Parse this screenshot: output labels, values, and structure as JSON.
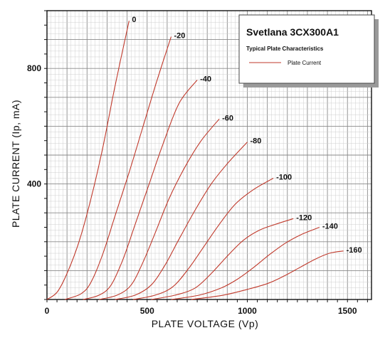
{
  "chart_data": {
    "type": "line",
    "title": "Svetlana 3CX300A1",
    "subtitle": "Typical Plate Characteristics",
    "xlabel": "PLATE VOLTAGE (Vp)",
    "ylabel": "PLATE CURRENT (Ip, mA)",
    "xlim": [
      0,
      1620
    ],
    "ylim": [
      0,
      1000
    ],
    "x_ticks": [
      "0",
      "500",
      "1000",
      "1500"
    ],
    "y_ticks": [
      "400",
      "800"
    ],
    "x_tick_values": [
      0,
      500,
      1000,
      1500
    ],
    "y_tick_values": [
      400,
      800
    ],
    "grid": true,
    "legend_position": "top-right",
    "legend": [
      {
        "name": "Plate Current",
        "color": "#c0392b"
      }
    ],
    "line_color": "#c0392b",
    "series": [
      {
        "name": "0",
        "label": "0",
        "points": [
          [
            0,
            0
          ],
          [
            50,
            25
          ],
          [
            100,
            90
          ],
          [
            160,
            200
          ],
          [
            220,
            350
          ],
          [
            280,
            530
          ],
          [
            340,
            740
          ],
          [
            410,
            965
          ]
        ]
      },
      {
        "name": "-20",
        "label": "-20",
        "points": [
          [
            90,
            0
          ],
          [
            170,
            20
          ],
          [
            220,
            60
          ],
          [
            280,
            160
          ],
          [
            340,
            290
          ],
          [
            410,
            440
          ],
          [
            480,
            600
          ],
          [
            550,
            760
          ],
          [
            620,
            910
          ]
        ]
      },
      {
        "name": "-40",
        "label": "-40",
        "points": [
          [
            180,
            0
          ],
          [
            260,
            15
          ],
          [
            320,
            50
          ],
          [
            380,
            140
          ],
          [
            440,
            260
          ],
          [
            510,
            400
          ],
          [
            580,
            540
          ],
          [
            660,
            680
          ],
          [
            750,
            760
          ]
        ]
      },
      {
        "name": "-60",
        "label": "-60",
        "points": [
          [
            260,
            0
          ],
          [
            350,
            15
          ],
          [
            420,
            50
          ],
          [
            480,
            130
          ],
          [
            540,
            230
          ],
          [
            610,
            350
          ],
          [
            690,
            460
          ],
          [
            770,
            550
          ],
          [
            860,
            625
          ]
        ]
      },
      {
        "name": "-80",
        "label": "-80",
        "points": [
          [
            340,
            0
          ],
          [
            440,
            15
          ],
          [
            520,
            50
          ],
          [
            590,
            120
          ],
          [
            660,
            210
          ],
          [
            740,
            310
          ],
          [
            820,
            400
          ],
          [
            900,
            470
          ],
          [
            1000,
            545
          ]
        ]
      },
      {
        "name": "-100",
        "label": "-100",
        "points": [
          [
            430,
            0
          ],
          [
            540,
            15
          ],
          [
            630,
            45
          ],
          [
            710,
            110
          ],
          [
            780,
            180
          ],
          [
            860,
            260
          ],
          [
            940,
            330
          ],
          [
            1030,
            380
          ],
          [
            1130,
            420
          ]
        ]
      },
      {
        "name": "-120",
        "label": "-120",
        "points": [
          [
            520,
            0
          ],
          [
            640,
            15
          ],
          [
            740,
            40
          ],
          [
            820,
            90
          ],
          [
            900,
            150
          ],
          [
            980,
            205
          ],
          [
            1060,
            240
          ],
          [
            1140,
            260
          ],
          [
            1230,
            280
          ]
        ]
      },
      {
        "name": "-140",
        "label": "-140",
        "points": [
          [
            620,
            0
          ],
          [
            760,
            15
          ],
          [
            870,
            40
          ],
          [
            950,
            70
          ],
          [
            1030,
            110
          ],
          [
            1110,
            155
          ],
          [
            1190,
            195
          ],
          [
            1270,
            225
          ],
          [
            1360,
            250
          ]
        ]
      },
      {
        "name": "-160",
        "label": "-160",
        "points": [
          [
            720,
            0
          ],
          [
            880,
            15
          ],
          [
            1000,
            35
          ],
          [
            1100,
            55
          ],
          [
            1180,
            80
          ],
          [
            1260,
            110
          ],
          [
            1340,
            140
          ],
          [
            1410,
            160
          ],
          [
            1480,
            168
          ]
        ]
      }
    ]
  }
}
